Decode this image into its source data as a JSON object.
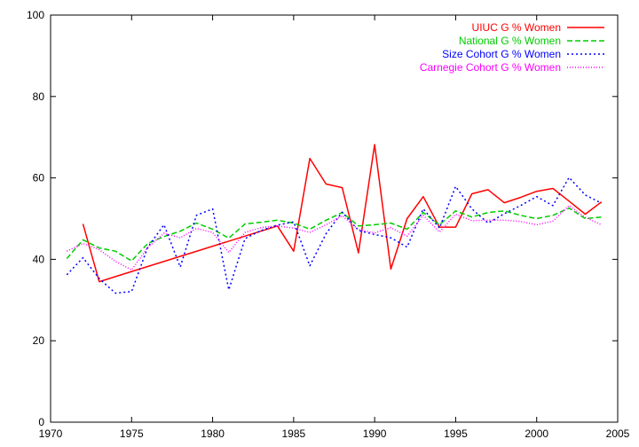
{
  "chart_data": {
    "type": "line",
    "title": "",
    "xlabel": "",
    "ylabel": "",
    "xlim": [
      1970,
      2005
    ],
    "ylim": [
      0,
      100
    ],
    "xticks": [
      1970,
      1975,
      1980,
      1985,
      1990,
      1995,
      2000,
      2005
    ],
    "yticks": [
      0,
      20,
      40,
      60,
      80,
      100
    ],
    "grid": false,
    "legend_position": "top-right",
    "series": [
      {
        "name": "UIUC G % Women",
        "color": "#ff0000",
        "dash": "solid",
        "x": [
          1972,
          1973,
          1984,
          1985,
          1986,
          1987,
          1988,
          1989,
          1990,
          1991,
          1992,
          1993,
          1994,
          1995,
          1996,
          1997,
          1998,
          1999,
          2000,
          2001,
          2002,
          2003,
          2004
        ],
        "y": [
          48.7,
          34.5,
          48.2,
          42.0,
          64.8,
          58.5,
          57.6,
          41.6,
          68.2,
          37.6,
          50.0,
          55.4,
          47.9,
          47.9,
          56.1,
          57.1,
          53.9,
          55.2,
          56.7,
          57.4,
          54.3,
          51.1,
          54.1
        ]
      },
      {
        "name": "National G % Women",
        "color": "#00cc00",
        "dash": "dashed",
        "x": [
          1971,
          1972,
          1973,
          1974,
          1975,
          1976,
          1977,
          1978,
          1979,
          1980,
          1981,
          1982,
          1983,
          1984,
          1985,
          1986,
          1987,
          1988,
          1989,
          1990,
          1991,
          1992,
          1993,
          1994,
          1995,
          1996,
          1997,
          1998,
          1999,
          2000,
          2001,
          2002,
          2003,
          2004
        ],
        "y": [
          40.2,
          44.8,
          42.8,
          42.0,
          39.6,
          43.9,
          45.6,
          46.9,
          48.9,
          47.4,
          45.2,
          48.7,
          49.1,
          49.6,
          48.9,
          47.4,
          49.6,
          51.5,
          48.2,
          48.5,
          48.9,
          47.4,
          51.5,
          48.5,
          51.9,
          50.4,
          51.5,
          51.9,
          50.8,
          50.0,
          50.8,
          52.6,
          50.0,
          50.4
        ]
      },
      {
        "name": "Size Cohort G % Women",
        "color": "#0000ff",
        "dash": "dotted",
        "x": [
          1971,
          1972,
          1973,
          1974,
          1975,
          1976,
          1977,
          1978,
          1979,
          1980,
          1981,
          1982,
          1983,
          1984,
          1985,
          1986,
          1987,
          1988,
          1989,
          1990,
          1991,
          1992,
          1993,
          1994,
          1995,
          1996,
          1997,
          1998,
          1999,
          2000,
          2001,
          2002,
          2003,
          2004
        ],
        "y": [
          36.2,
          40.4,
          35.3,
          31.7,
          32.1,
          43.0,
          48.5,
          38.1,
          50.8,
          52.4,
          32.5,
          45.1,
          47.1,
          48.4,
          49.2,
          38.4,
          46.3,
          51.6,
          47.1,
          46.1,
          45.3,
          43.0,
          52.4,
          47.7,
          57.9,
          52.4,
          48.9,
          51.2,
          53.2,
          55.4,
          53.2,
          60.1,
          55.8,
          53.8
        ]
      },
      {
        "name": "Carnegie Cohort G % Women",
        "color": "#ff00ff",
        "dash": "dotted-fine",
        "x": [
          1971,
          1972,
          1973,
          1974,
          1975,
          1976,
          1977,
          1978,
          1979,
          1980,
          1981,
          1982,
          1983,
          1984,
          1985,
          1986,
          1987,
          1988,
          1989,
          1990,
          1991,
          1992,
          1993,
          1994,
          1995,
          1996,
          1997,
          1998,
          1999,
          2000,
          2001,
          2002,
          2003,
          2004
        ],
        "y": [
          42.0,
          43.9,
          42.4,
          39.5,
          37.4,
          42.9,
          46.4,
          45.3,
          47.6,
          46.6,
          41.7,
          46.6,
          47.8,
          48.2,
          47.7,
          46.6,
          48.5,
          50.7,
          47.3,
          46.5,
          47.8,
          45.7,
          50.8,
          46.7,
          51.1,
          49.5,
          49.6,
          49.6,
          49.3,
          48.5,
          49.4,
          53.2,
          50.3,
          48.5
        ]
      }
    ]
  }
}
